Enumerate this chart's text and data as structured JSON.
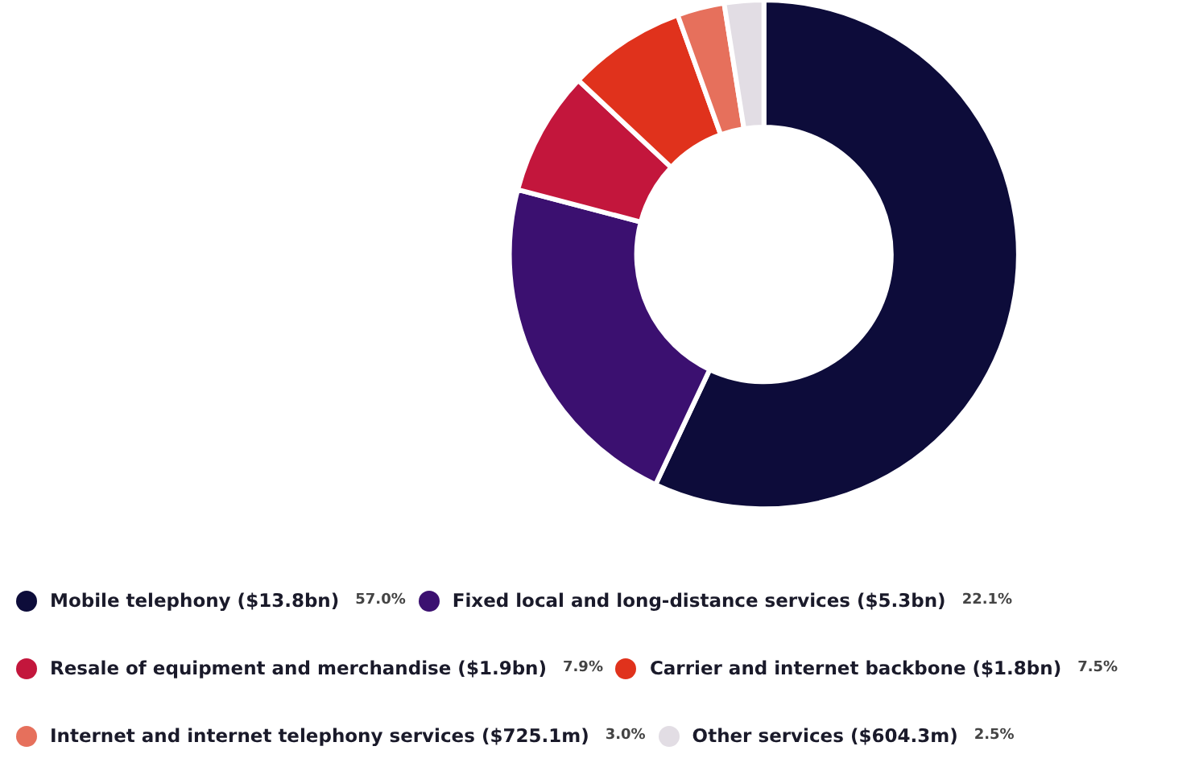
{
  "chart_data": {
    "type": "donut",
    "categories": [
      "Mobile telephony ($13.8bn)",
      "Fixed local and long-distance services ($5.3bn)",
      "Resale of equipment and merchandise ($1.9bn)",
      "Carrier and internet backbone ($1.8bn)",
      "Internet and internet telephony services ($725.1m)",
      "Other services ($604.3m)"
    ],
    "values": [
      57.0,
      22.1,
      7.9,
      7.5,
      3.0,
      2.5
    ],
    "value_labels": [
      "57.0%",
      "22.1%",
      "7.9%",
      "7.5%",
      "3.0%",
      "2.5%"
    ],
    "colors": [
      "#0d0c3a",
      "#3b1070",
      "#c3163c",
      "#e0321c",
      "#e6705c",
      "#e2dde4"
    ],
    "legend": "bottom"
  }
}
